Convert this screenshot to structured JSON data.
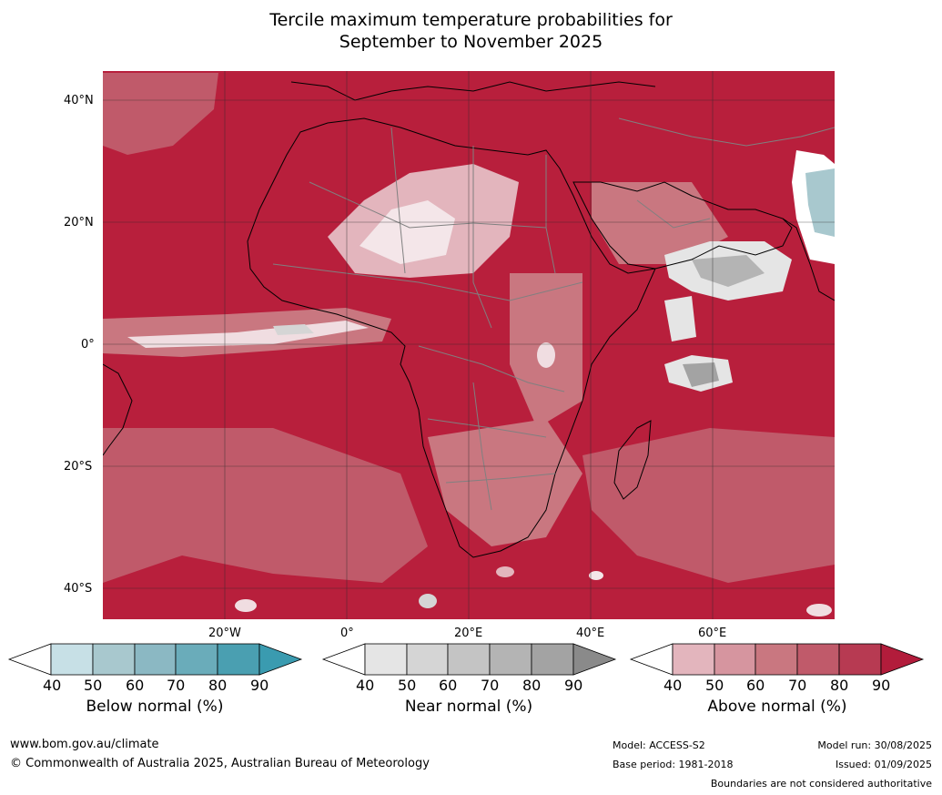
{
  "title": {
    "line1": "Tercile maximum temperature probabilities for",
    "line2": "September to November 2025"
  },
  "map": {
    "lat_labels": [
      "40°N",
      "20°N",
      "0°",
      "20°S",
      "40°S"
    ],
    "lon_labels": [
      "20°W",
      "0°",
      "20°E",
      "40°E",
      "60°E"
    ],
    "colors": {
      "ocean_fill": "#b81f3c",
      "coast": "#000000",
      "borders": "#808080",
      "grid": "#2b2b2b"
    }
  },
  "legends": {
    "below": {
      "label": "Below normal (%)",
      "ticks": [
        "40",
        "50",
        "60",
        "70",
        "80",
        "90"
      ],
      "colors": [
        "#ffffff",
        "#c7e0e6",
        "#a8c8ce",
        "#8bb8c3",
        "#6aacba",
        "#4a9fb1",
        "#3a9bb0"
      ]
    },
    "near": {
      "label": "Near normal (%)",
      "ticks": [
        "40",
        "50",
        "60",
        "70",
        "80",
        "90"
      ],
      "colors": [
        "#ffffff",
        "#e5e5e5",
        "#d5d5d5",
        "#c4c4c4",
        "#b4b4b4",
        "#a3a3a3",
        "#8a8a8a"
      ]
    },
    "above": {
      "label": "Above normal (%)",
      "ticks": [
        "40",
        "50",
        "60",
        "70",
        "80",
        "90"
      ],
      "colors": [
        "#ffffff",
        "#e3b5bd",
        "#d6959f",
        "#c97780",
        "#c05a6a",
        "#b73a52",
        "#b21c3b"
      ]
    }
  },
  "footer": {
    "website": "www.bom.gov.au/climate",
    "copyright": "© Commonwealth of Australia 2025, Australian Bureau of Meteorology",
    "model": "Model: ACCESS-S2",
    "base_period": "Base period: 1981-2018",
    "model_run": "Model run: 30/08/2025",
    "issued": "Issued: 01/09/2025",
    "disclaimer": "Boundaries are not considered authoritative"
  }
}
